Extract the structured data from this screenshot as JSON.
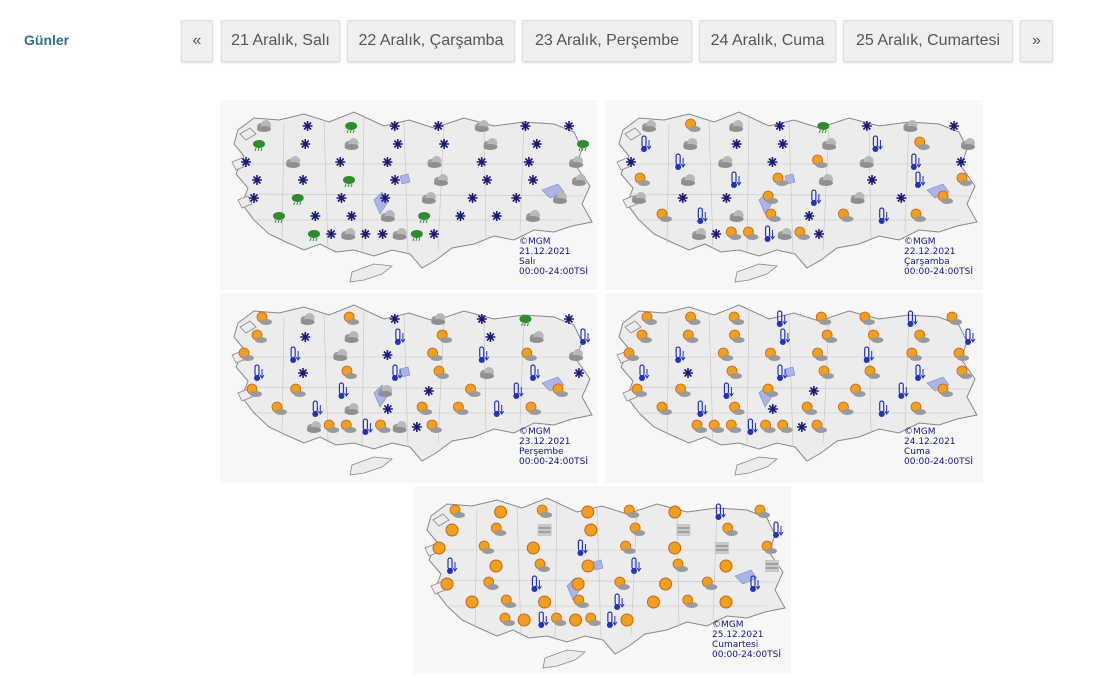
{
  "section_label": "Günler",
  "pager": {
    "prev": "«",
    "next": "»",
    "days": [
      "21 Aralık, Salı",
      "22 Aralık, Çarşamba",
      "23 Aralık, Perşembe",
      "24 Aralık, Cuma",
      "25 Aralık, Cumartesi"
    ]
  },
  "maps": [
    {
      "copyright": "©MGM",
      "date": "21.12.2021",
      "day": "Salı",
      "time": "00:00-24:00TSİ",
      "icons": [
        "cloud",
        "snow",
        "cloud-rain",
        "snow",
        "snow",
        "cloud",
        "snow",
        "snow",
        "cloud-rain",
        "snow",
        "cloud",
        "snow",
        "snow",
        "cloud",
        "snow",
        "cloud-rain",
        "snow",
        "cloud",
        "snow",
        "snow",
        "cloud",
        "snow",
        "snow",
        "cloud",
        "snow",
        "snow",
        "cloud-rain",
        "snow",
        "cloud",
        "snow",
        "snow",
        "cloud",
        "snow",
        "cloud-rain",
        "snow",
        "snow",
        "cloud",
        "snow",
        "snow",
        "cloud",
        "cloud-rain",
        "snow",
        "snow",
        "cloud",
        "cloud-rain",
        "snow",
        "snow",
        "cloud",
        "cloud-rain",
        "snow",
        "cloud",
        "snow",
        "snow",
        "cloud",
        "cloud-rain",
        "snow"
      ]
    },
    {
      "copyright": "©MGM",
      "date": "22.12.2021",
      "day": "Çarşamba",
      "time": "00:00-24:00TSİ",
      "icons": [
        "cloud",
        "sun-cloud",
        "cloud",
        "snow",
        "cloud-rain",
        "snow",
        "cloud",
        "snow",
        "thermo-cold",
        "cloud",
        "snow",
        "snow",
        "cloud",
        "thermo-cold",
        "sun-cloud",
        "cloud",
        "snow",
        "thermo-cold",
        "cloud",
        "snow",
        "sun-cloud",
        "cloud",
        "thermo-cold",
        "snow",
        "sun-cloud",
        "cloud",
        "thermo-cold",
        "sun-cloud",
        "cloud",
        "snow",
        "thermo-cold",
        "sun-cloud",
        "cloud",
        "snow",
        "snow",
        "sun-cloud",
        "thermo-cold",
        "cloud",
        "snow",
        "sun-cloud",
        "sun-cloud",
        "thermo-cold",
        "cloud",
        "sun-cloud",
        "snow",
        "sun-cloud",
        "thermo-cold",
        "sun-cloud",
        "cloud",
        "snow",
        "sun-cloud",
        "sun-cloud",
        "thermo-cold",
        "cloud",
        "sun-cloud",
        "snow"
      ]
    },
    {
      "copyright": "©MGM",
      "date": "23.12.2021",
      "day": "Perşembe",
      "time": "00:00-24:00TSİ",
      "icons": [
        "sun-cloud",
        "cloud",
        "sun-cloud",
        "snow",
        "cloud",
        "snow",
        "cloud-rain",
        "snow",
        "sun-cloud",
        "snow",
        "cloud",
        "thermo-cold",
        "sun-cloud",
        "snow",
        "cloud",
        "thermo-cold",
        "sun-cloud",
        "thermo-cold",
        "cloud",
        "snow",
        "sun-cloud",
        "thermo-cold",
        "sun-cloud",
        "cloud",
        "thermo-cold",
        "snow",
        "sun-cloud",
        "thermo-cold",
        "sun-cloud",
        "cloud",
        "thermo-cold",
        "snow",
        "sun-cloud",
        "sun-cloud",
        "thermo-cold",
        "cloud",
        "snow",
        "sun-cloud",
        "thermo-cold",
        "sun-cloud",
        "sun-cloud",
        "thermo-cold",
        "cloud",
        "snow",
        "sun-cloud",
        "sun-cloud",
        "thermo-cold",
        "sun-cloud",
        "cloud",
        "sun-cloud",
        "sun-cloud",
        "thermo-cold",
        "sun-cloud",
        "cloud",
        "snow",
        "sun-cloud"
      ]
    },
    {
      "copyright": "©MGM",
      "date": "24.12.2021",
      "day": "Cuma",
      "time": "00:00-24:00TSİ",
      "icons": [
        "sun-cloud",
        "sun-cloud",
        "sun-cloud",
        "thermo-cold",
        "sun-cloud",
        "sun-cloud",
        "thermo-cold",
        "sun-cloud",
        "sun-cloud",
        "sun-cloud",
        "sun-cloud",
        "thermo-cold",
        "sun-cloud",
        "sun-cloud",
        "sun-cloud",
        "thermo-cold",
        "sun-cloud",
        "thermo-cold",
        "sun-cloud",
        "sun-cloud",
        "sun-cloud",
        "thermo-cold",
        "sun-cloud",
        "sun-cloud",
        "thermo-cold",
        "snow",
        "sun-cloud",
        "thermo-cold",
        "sun-cloud",
        "sun-cloud",
        "thermo-cold",
        "sun-cloud",
        "sun-cloud",
        "sun-cloud",
        "thermo-cold",
        "sun-cloud",
        "snow",
        "sun-cloud",
        "thermo-cold",
        "sun-cloud",
        "sun-cloud",
        "thermo-cold",
        "sun-cloud",
        "snow",
        "sun-cloud",
        "sun-cloud",
        "thermo-cold",
        "sun-cloud",
        "sun-cloud",
        "sun-cloud",
        "sun-cloud",
        "thermo-cold",
        "sun-cloud",
        "sun-cloud",
        "snow",
        "sun-cloud"
      ]
    },
    {
      "copyright": "©MGM",
      "date": "25.12.2021",
      "day": "Cumartesi",
      "time": "00:00-24:00TSİ",
      "icons": [
        "sun-cloud",
        "sun",
        "sun-cloud",
        "sun",
        "sun-cloud",
        "sun",
        "thermo-cold",
        "sun-cloud",
        "sun",
        "sun-cloud",
        "fog",
        "sun",
        "sun-cloud",
        "fog",
        "sun-cloud",
        "thermo-cold",
        "sun",
        "sun-cloud",
        "sun",
        "thermo-cold",
        "sun-cloud",
        "sun",
        "fog",
        "sun-cloud",
        "thermo-cold",
        "sun",
        "sun-cloud",
        "sun",
        "thermo-cold",
        "sun-cloud",
        "sun",
        "fog",
        "sun",
        "sun-cloud",
        "thermo-cold",
        "sun",
        "sun-cloud",
        "sun",
        "sun-cloud",
        "thermo-cold",
        "sun",
        "sun-cloud",
        "sun",
        "sun-cloud",
        "thermo-cold",
        "sun",
        "sun-cloud",
        "sun",
        "sun-cloud",
        "sun",
        "thermo-cold",
        "sun-cloud",
        "sun",
        "sun-cloud",
        "thermo-cold",
        "sun"
      ]
    }
  ],
  "colors": {
    "label": "#2f6f88",
    "snow": "#1a1a7a",
    "thermo": "#2233bb",
    "rain_green": "#2e8b2e",
    "sun": "#f0a020",
    "cloud": "#9a9a9a",
    "caption": "#151585"
  }
}
